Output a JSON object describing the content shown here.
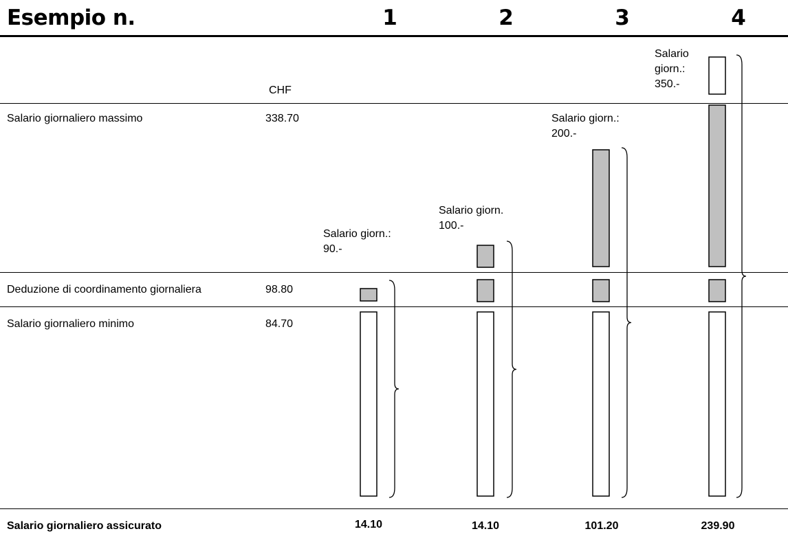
{
  "title": "Esempio n.",
  "currency": "CHF",
  "rows": [
    {
      "label": "Salario giornaliero massimo",
      "value": "338.70"
    },
    {
      "label": "Deduzione di coordinamento giornaliera",
      "value": "98.80"
    },
    {
      "label": "Salario giornaliero minimo",
      "value": "84.70"
    }
  ],
  "insured_label": "Salario giornaliero assicurato",
  "examples": [
    {
      "number": "1",
      "note": "Salario giorn.:\n90.-",
      "insured": "14.10"
    },
    {
      "number": "2",
      "note": "Salario giorn.\n100.-",
      "insured": "14.10"
    },
    {
      "number": "3",
      "note": "Salario giorn.:\n200.-",
      "insured": "101.20"
    },
    {
      "number": "4",
      "note": "Salario\ngiorn.:\n350.-",
      "insured": "239.90"
    }
  ],
  "colors": {
    "deduction_fill": "#c0c0c0",
    "line": "#000000",
    "background": "#ffffff"
  }
}
